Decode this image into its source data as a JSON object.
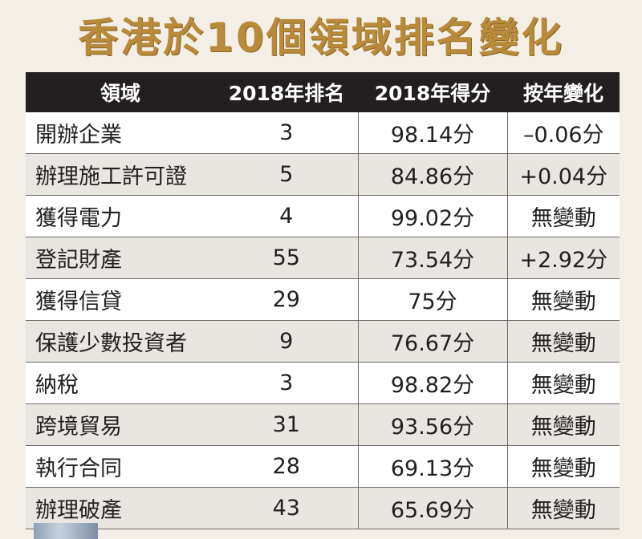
{
  "title": "香港於10個領域排名變化",
  "chart_data": {
    "type": "table",
    "columns": [
      "領域",
      "2018年排名",
      "2018年得分",
      "按年變化"
    ],
    "rows": [
      {
        "domain": "開辦企業",
        "rank": "3",
        "score": "98.14分",
        "change": "–0.06分"
      },
      {
        "domain": "辦理施工許可證",
        "rank": "5",
        "score": "84.86分",
        "change": "+0.04分"
      },
      {
        "domain": "獲得電力",
        "rank": "4",
        "score": "99.02分",
        "change": "無變動"
      },
      {
        "domain": "登記財產",
        "rank": "55",
        "score": "73.54分",
        "change": "+2.92分"
      },
      {
        "domain": "獲得信貸",
        "rank": "29",
        "score": "75分",
        "change": "無變動"
      },
      {
        "domain": "保護少數投資者",
        "rank": "9",
        "score": "76.67分",
        "change": "無變動"
      },
      {
        "domain": "納稅",
        "rank": "3",
        "score": "98.82分",
        "change": "無變動"
      },
      {
        "domain": "跨境貿易",
        "rank": "31",
        "score": "93.56分",
        "change": "無變動"
      },
      {
        "domain": "執行合同",
        "rank": "28",
        "score": "69.13分",
        "change": "無變動"
      },
      {
        "domain": "辦理破產",
        "rank": "43",
        "score": "65.69分",
        "change": "無變動"
      }
    ]
  },
  "colors": {
    "title": "#b88a3a",
    "header_bg": "#231f20",
    "header_text": "#ffffff",
    "row_odd": "#ffffff",
    "row_even": "#e9e5e1"
  }
}
